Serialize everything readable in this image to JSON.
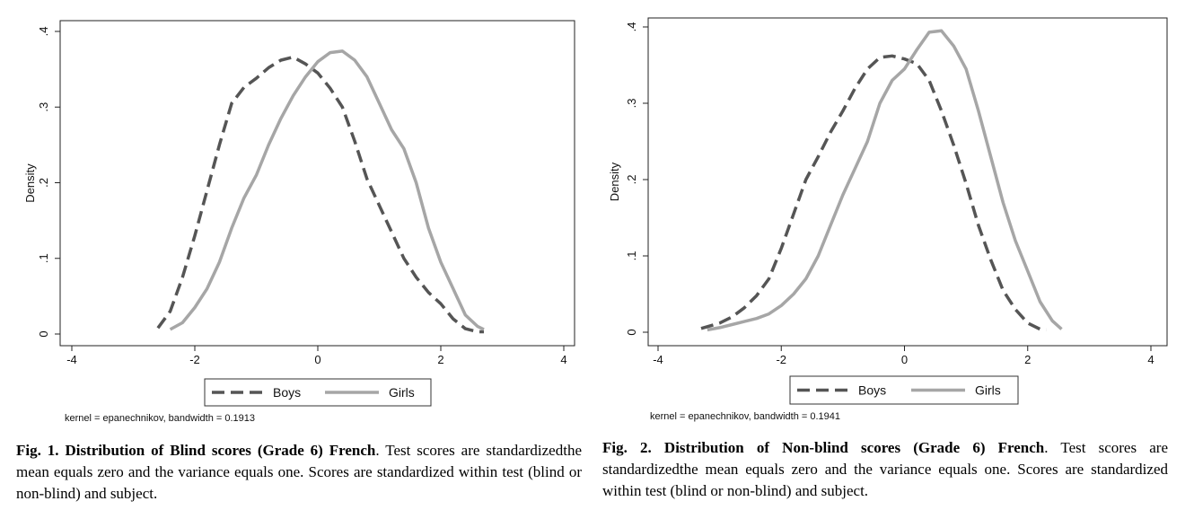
{
  "chart_data": [
    {
      "type": "line",
      "title": "",
      "xlabel": "",
      "ylabel": "Density",
      "xlim": [
        -4,
        4
      ],
      "ylim": [
        0,
        0.4
      ],
      "xticks": [
        "-4",
        "-2",
        "0",
        "2",
        "4"
      ],
      "yticks": [
        "0",
        ".1",
        ".2",
        ".3",
        ".4"
      ],
      "legend": {
        "position": "bottom-center"
      },
      "note": "kernel = epanechnikov, bandwidth = 0.1913",
      "series": [
        {
          "name": "Boys",
          "style": "dashed",
          "color": "#555555",
          "x": [
            -2.6,
            -2.4,
            -2.2,
            -2.0,
            -1.8,
            -1.6,
            -1.4,
            -1.2,
            -1.0,
            -0.8,
            -0.6,
            -0.4,
            -0.2,
            0.0,
            0.2,
            0.4,
            0.6,
            0.8,
            1.0,
            1.2,
            1.4,
            1.6,
            1.8,
            2.0,
            2.2,
            2.4,
            2.6,
            2.7
          ],
          "y": [
            0.008,
            0.03,
            0.075,
            0.13,
            0.19,
            0.25,
            0.305,
            0.326,
            0.338,
            0.352,
            0.362,
            0.366,
            0.357,
            0.345,
            0.325,
            0.3,
            0.255,
            0.205,
            0.17,
            0.135,
            0.1,
            0.075,
            0.055,
            0.04,
            0.02,
            0.007,
            0.003,
            0.003
          ]
        },
        {
          "name": "Girls",
          "style": "solid",
          "color": "#a6a6a6",
          "x": [
            -2.4,
            -2.2,
            -2.0,
            -1.8,
            -1.6,
            -1.4,
            -1.2,
            -1.0,
            -0.8,
            -0.6,
            -0.4,
            -0.2,
            0.0,
            0.2,
            0.4,
            0.6,
            0.8,
            1.0,
            1.2,
            1.4,
            1.6,
            1.8,
            2.0,
            2.2,
            2.4,
            2.6,
            2.7
          ],
          "y": [
            0.006,
            0.015,
            0.035,
            0.06,
            0.095,
            0.14,
            0.18,
            0.21,
            0.25,
            0.285,
            0.315,
            0.34,
            0.36,
            0.372,
            0.374,
            0.362,
            0.34,
            0.305,
            0.27,
            0.245,
            0.2,
            0.14,
            0.095,
            0.06,
            0.025,
            0.01,
            0.006
          ]
        }
      ]
    },
    {
      "type": "line",
      "title": "",
      "xlabel": "",
      "ylabel": "Density",
      "xlim": [
        -4,
        4
      ],
      "ylim": [
        0,
        0.4
      ],
      "xticks": [
        "-4",
        "-2",
        "0",
        "2",
        "4"
      ],
      "yticks": [
        "0",
        ".1",
        ".2",
        ".3",
        ".4"
      ],
      "legend": {
        "position": "bottom-center"
      },
      "note": "kernel = epanechnikov, bandwidth = 0.1941",
      "series": [
        {
          "name": "Boys",
          "style": "dashed",
          "color": "#555555",
          "x": [
            -3.3,
            -3.0,
            -2.8,
            -2.6,
            -2.4,
            -2.2,
            -2.0,
            -1.8,
            -1.6,
            -1.4,
            -1.2,
            -1.0,
            -0.8,
            -0.6,
            -0.4,
            -0.2,
            0.0,
            0.2,
            0.4,
            0.6,
            0.8,
            1.0,
            1.2,
            1.4,
            1.6,
            1.8,
            2.0,
            2.2,
            2.3
          ],
          "y": [
            0.005,
            0.012,
            0.02,
            0.032,
            0.048,
            0.07,
            0.11,
            0.155,
            0.2,
            0.23,
            0.262,
            0.29,
            0.32,
            0.345,
            0.36,
            0.362,
            0.358,
            0.352,
            0.33,
            0.29,
            0.245,
            0.195,
            0.14,
            0.095,
            0.055,
            0.03,
            0.012,
            0.004,
            0.003
          ]
        },
        {
          "name": "Girls",
          "style": "solid",
          "color": "#a6a6a6",
          "x": [
            -3.2,
            -3.0,
            -2.8,
            -2.6,
            -2.4,
            -2.2,
            -2.0,
            -1.8,
            -1.6,
            -1.4,
            -1.2,
            -1.0,
            -0.8,
            -0.6,
            -0.4,
            -0.2,
            0.0,
            0.2,
            0.4,
            0.6,
            0.8,
            1.0,
            1.2,
            1.4,
            1.6,
            1.8,
            2.0,
            2.2,
            2.4,
            2.55
          ],
          "y": [
            0.003,
            0.006,
            0.01,
            0.014,
            0.018,
            0.024,
            0.035,
            0.05,
            0.07,
            0.1,
            0.14,
            0.18,
            0.215,
            0.25,
            0.3,
            0.33,
            0.345,
            0.37,
            0.393,
            0.395,
            0.375,
            0.345,
            0.29,
            0.23,
            0.17,
            0.12,
            0.08,
            0.04,
            0.015,
            0.004
          ]
        }
      ]
    }
  ],
  "captions": [
    {
      "label": "Fig. 1. Distribution of Blind scores (Grade 6) French",
      "text": ". Test scores are standardizedthe mean equals zero and the variance equals one. Scores are standardized within test (blind or non-blind) and subject."
    },
    {
      "label": "Fig. 2. Distribution of Non-blind scores (Grade 6) French",
      "text": ". Test scores are standardizedthe mean equals zero and the variance equals one. Scores are standardized within test (blind or non-blind) and subject."
    }
  ]
}
